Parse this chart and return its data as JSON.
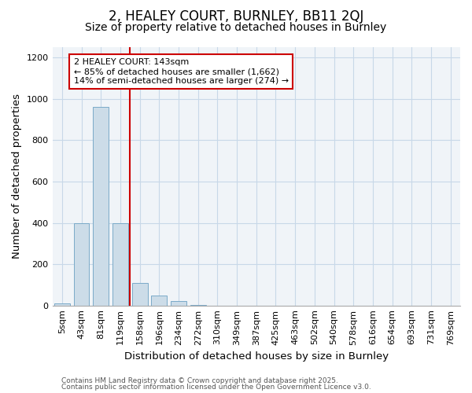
{
  "title": "2, HEALEY COURT, BURNLEY, BB11 2QJ",
  "subtitle": "Size of property relative to detached houses in Burnley",
  "xlabel": "Distribution of detached houses by size in Burnley",
  "ylabel": "Number of detached properties",
  "categories": [
    "5sqm",
    "43sqm",
    "81sqm",
    "119sqm",
    "158sqm",
    "196sqm",
    "234sqm",
    "272sqm",
    "310sqm",
    "349sqm",
    "387sqm",
    "425sqm",
    "463sqm",
    "502sqm",
    "540sqm",
    "578sqm",
    "616sqm",
    "654sqm",
    "693sqm",
    "731sqm",
    "769sqm"
  ],
  "values": [
    10,
    400,
    960,
    400,
    110,
    50,
    20,
    3,
    0,
    0,
    0,
    0,
    0,
    0,
    0,
    0,
    0,
    0,
    0,
    0,
    0
  ],
  "bar_color": "#ccdce8",
  "bar_edge_color": "#7aaac8",
  "redline_index": 4,
  "redline_color": "#cc0000",
  "annotation_text": "2 HEALEY COURT: 143sqm\n← 85% of detached houses are smaller (1,662)\n14% of semi-detached houses are larger (274) →",
  "annotation_box_color": "#ffffff",
  "annotation_box_edge_color": "#cc0000",
  "ylim": [
    0,
    1250
  ],
  "yticks": [
    0,
    200,
    400,
    600,
    800,
    1000,
    1200
  ],
  "grid_color": "#c8d8e8",
  "bg_color": "#ffffff",
  "plot_bg_color": "#f0f4f8",
  "footer_line1": "Contains HM Land Registry data © Crown copyright and database right 2025.",
  "footer_line2": "Contains public sector information licensed under the Open Government Licence v3.0.",
  "title_fontsize": 12,
  "subtitle_fontsize": 10,
  "axis_label_fontsize": 9.5,
  "tick_fontsize": 8,
  "annotation_fontsize": 8,
  "footer_fontsize": 6.5
}
